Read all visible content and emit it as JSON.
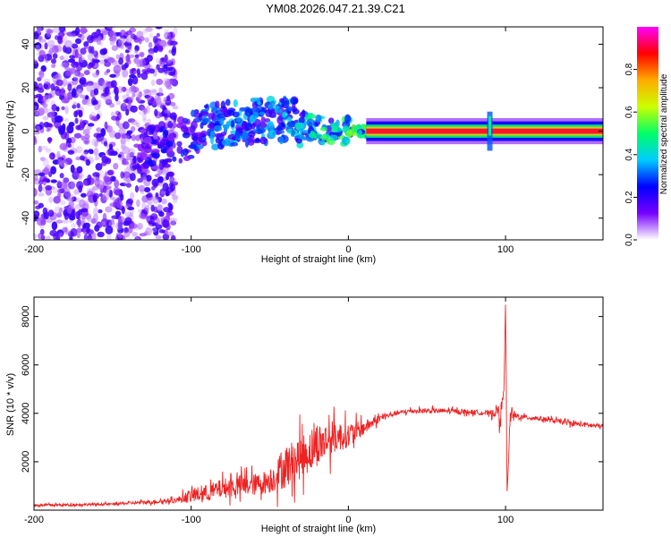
{
  "title": "YM08.2026.047.21.39.C21",
  "chart_data": [
    {
      "type": "heatmap",
      "xlabel": "Height of straight line (km)",
      "ylabel": "Frequency (Hz)",
      "xlim": [
        -200,
        162
      ],
      "ylim": [
        -50,
        48
      ],
      "xticks": [
        -200,
        -100,
        0,
        100
      ],
      "yticks": [
        -40,
        -20,
        0,
        20,
        40
      ],
      "colorbar": {
        "label": "Normalized spectral amplitude",
        "range": [
          0.0,
          1.0
        ],
        "ticks": [
          0.0,
          0.2,
          0.4,
          0.6,
          0.8
        ],
        "tick_labels": [
          "0.0",
          "0.2",
          "0.4",
          "0.6",
          "0.8"
        ],
        "colormap": [
          "#ffffff",
          "#7700ff",
          "#0000ff",
          "#00ccff",
          "#00ff66",
          "#ccff00",
          "#ffaa00",
          "#ff0000",
          "#ff00ff"
        ]
      },
      "signal_band": {
        "x": [
          -130,
          -110,
          -90,
          -70,
          -50,
          -40,
          -30,
          -20,
          -10,
          0,
          10,
          20,
          40,
          60,
          80,
          90,
          100,
          120,
          140,
          162
        ],
        "center_freq": [
          -8,
          -6,
          2,
          4,
          5,
          6,
          3,
          1,
          0,
          0,
          0,
          0,
          0,
          0,
          0,
          0,
          0,
          0,
          0,
          0
        ],
        "peak_amplitude": [
          0.25,
          0.3,
          0.4,
          0.45,
          0.45,
          0.5,
          0.55,
          0.6,
          0.6,
          0.65,
          0.7,
          0.75,
          0.8,
          0.9,
          0.9,
          0.9,
          0.9,
          0.9,
          0.9,
          0.9
        ]
      },
      "noise_region_x": [
        -200,
        -110
      ]
    },
    {
      "type": "line",
      "xlabel": "Height of straight line (km)",
      "ylabel": "SNR (10 * v/v)",
      "xlim": [
        -200,
        162
      ],
      "ylim": [
        0,
        8800
      ],
      "xticks": [
        -200,
        -100,
        0,
        100
      ],
      "yticks": [
        2000,
        4000,
        6000,
        8000
      ],
      "color": "#ee2222",
      "series": [
        {
          "name": "SNR",
          "x": [
            -200,
            -150,
            -110,
            -100,
            -90,
            -80,
            -70,
            -60,
            -50,
            -40,
            -30,
            -20,
            -10,
            0,
            10,
            20,
            30,
            40,
            60,
            80,
            90,
            95,
            97,
            99,
            100,
            101,
            103,
            110,
            120,
            140,
            162
          ],
          "y": [
            200,
            250,
            400,
            600,
            700,
            900,
            1000,
            1050,
            1200,
            1800,
            2200,
            2700,
            3000,
            3100,
            3400,
            3800,
            4000,
            4100,
            4100,
            4050,
            4000,
            4100,
            3900,
            5000,
            8700,
            600,
            3900,
            3850,
            3800,
            3600,
            3450
          ],
          "noise_amplitude": [
            50,
            50,
            100,
            300,
            350,
            400,
            450,
            450,
            500,
            900,
            900,
            900,
            700,
            500,
            300,
            150,
            100,
            100,
            100,
            100,
            100,
            300,
            500,
            0,
            0,
            0,
            300,
            100,
            100,
            100,
            100
          ]
        }
      ]
    }
  ]
}
